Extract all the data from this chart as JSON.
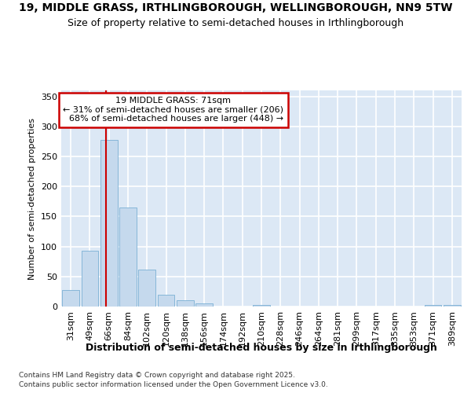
{
  "title1": "19, MIDDLE GRASS, IRTHLINGBOROUGH, WELLINGBOROUGH, NN9 5TW",
  "title2": "Size of property relative to semi-detached houses in Irthlingborough",
  "xlabel": "Distribution of semi-detached houses by size in Irthlingborough",
  "ylabel": "Number of semi-detached properties",
  "categories": [
    "31sqm",
    "49sqm",
    "66sqm",
    "84sqm",
    "102sqm",
    "120sqm",
    "138sqm",
    "156sqm",
    "174sqm",
    "192sqm",
    "210sqm",
    "228sqm",
    "246sqm",
    "264sqm",
    "281sqm",
    "299sqm",
    "317sqm",
    "335sqm",
    "353sqm",
    "371sqm",
    "389sqm"
  ],
  "values": [
    28,
    93,
    278,
    165,
    61,
    20,
    10,
    5,
    0,
    0,
    3,
    0,
    0,
    0,
    0,
    0,
    0,
    0,
    0,
    2,
    2
  ],
  "bar_color": "#c5d9ed",
  "bar_edge_color": "#7aafd4",
  "background_color": "#dce8f5",
  "grid_color": "#ffffff",
  "property_label": "19 MIDDLE GRASS: 71sqm",
  "smaller_pct": 31,
  "smaller_count": 206,
  "larger_pct": 68,
  "larger_count": 448,
  "annotation_box_color": "#cc0000",
  "property_line_index": 2.0,
  "ylim": [
    0,
    360
  ],
  "yticks": [
    0,
    50,
    100,
    150,
    200,
    250,
    300,
    350
  ],
  "title1_fontsize": 10,
  "title2_fontsize": 9,
  "xlabel_fontsize": 9,
  "ylabel_fontsize": 8,
  "tick_fontsize": 8,
  "annot_fontsize": 8,
  "footnote1": "Contains HM Land Registry data © Crown copyright and database right 2025.",
  "footnote2": "Contains public sector information licensed under the Open Government Licence v3.0.",
  "footnote_fontsize": 6.5
}
